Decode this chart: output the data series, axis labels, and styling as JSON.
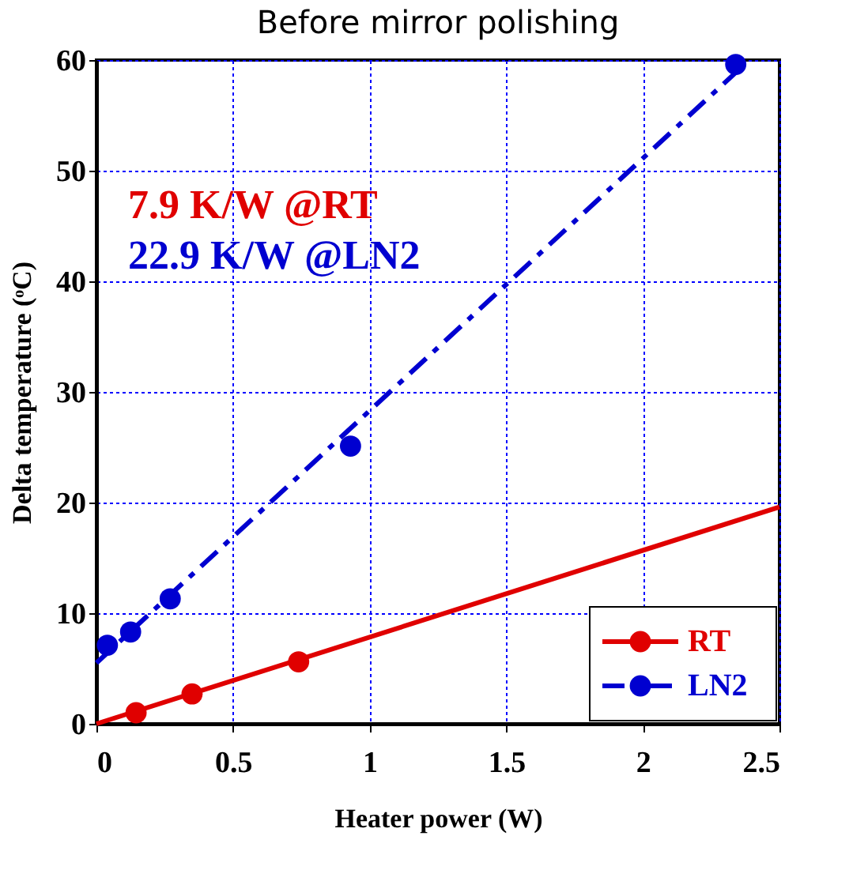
{
  "chart_data": {
    "type": "scatter",
    "title": "Before mirror polishing",
    "xlabel": "Heater power (W)",
    "ylabel": "Delta temperature (ᵒC)",
    "xlim": [
      0,
      2.5
    ],
    "ylim": [
      0,
      60
    ],
    "xticks": [
      0,
      0.5,
      1,
      1.5,
      2,
      2.5
    ],
    "yticks": [
      0,
      10,
      20,
      30,
      40,
      50,
      60
    ],
    "grid": true,
    "legend": "bottom right",
    "annotations": [
      "7.9 K/W @RT",
      "22.9 K/W @LN2"
    ],
    "series": [
      {
        "type": "line",
        "marker": "none",
        "color": "#e00000",
        "line_style": "solid",
        "x": [
          0,
          2.5
        ],
        "values": [
          0,
          19.6
        ]
      },
      {
        "type": "line",
        "marker": "none",
        "color": "#0000d0",
        "line_style": "dashed",
        "x": [
          0,
          2.35
        ],
        "values": [
          5.5,
          59.1
        ]
      },
      {
        "marker": "circle",
        "name": "RT",
        "color": "#e00000",
        "x": [
          0.145,
          0.35,
          0.74
        ],
        "values": [
          1.0,
          2.7,
          5.6
        ]
      },
      {
        "marker": "circle",
        "name": "LN2",
        "color": "#0000d0",
        "x": [
          0.04,
          0.125,
          0.27,
          0.93,
          2.34
        ],
        "values": [
          7.1,
          8.3,
          11.3,
          25.1,
          59.6
        ]
      }
    ]
  }
}
